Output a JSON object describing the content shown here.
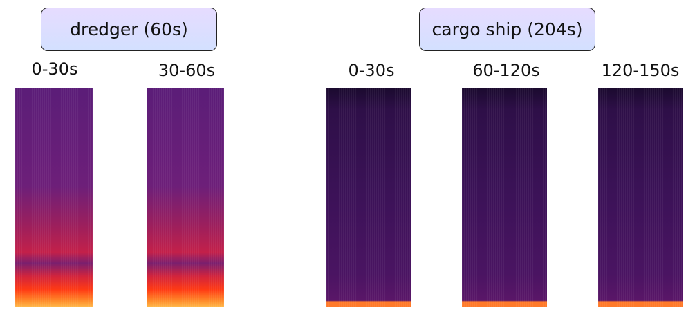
{
  "groups": [
    {
      "title": "dredger (60s)",
      "segments": [
        {
          "label": "0-30s",
          "spectrogram": "dredger-0-30"
        },
        {
          "label": "30-60s",
          "spectrogram": "dredger-30-60"
        }
      ]
    },
    {
      "title": "cargo ship (204s)",
      "segments": [
        {
          "label": "0-30s",
          "spectrogram": "cargo-0-30"
        },
        {
          "label": "60-120s",
          "spectrogram": "cargo-60-120"
        },
        {
          "label": "120-150s",
          "spectrogram": "cargo-120-150"
        }
      ]
    }
  ],
  "colors": {
    "dredger_base": "#6a1f7a",
    "dredger_hot": "#ff5a1a",
    "cargo_base": "#3a1050",
    "cargo_line": "#ff7a2a"
  }
}
